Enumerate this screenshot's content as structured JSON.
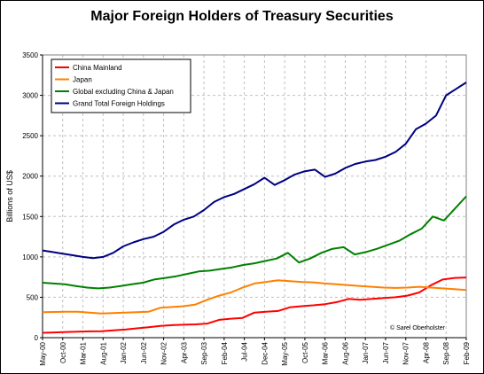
{
  "chart_data": {
    "type": "line",
    "title": "Major Foreign Holders of Treasury Securities",
    "ylabel": "Billions of US$",
    "xlabel": "",
    "ylim": [
      0,
      3500
    ],
    "yticks": [
      0,
      500,
      1000,
      1500,
      2000,
      2500,
      3000,
      3500
    ],
    "xticks": [
      "May-00",
      "Oct-00",
      "Mar-01",
      "Aug-01",
      "Jan-02",
      "Jun-02",
      "Nov-02",
      "Apr-03",
      "Sep-03",
      "Feb-04",
      "Jul-04",
      "Dec-04",
      "May-05",
      "Oct-05",
      "Mar-06",
      "Aug-06",
      "Jan-07",
      "Jun-07",
      "Nov-07",
      "Apr-08",
      "Sep-08",
      "Feb-09"
    ],
    "grid": true,
    "legend_position": "top-left",
    "credit": "© Sarel Oberholster",
    "series": [
      {
        "name": "China Mainland",
        "color": "#ff0000",
        "values": [
          60,
          65,
          70,
          75,
          78,
          80,
          90,
          100,
          115,
          130,
          145,
          155,
          160,
          165,
          175,
          220,
          235,
          245,
          310,
          320,
          330,
          375,
          390,
          400,
          415,
          440,
          480,
          470,
          480,
          490,
          500,
          520,
          560,
          650,
          720,
          740,
          745
        ]
      },
      {
        "name": "Japan",
        "color": "#ff8000",
        "values": [
          315,
          318,
          320,
          320,
          310,
          300,
          305,
          310,
          315,
          320,
          370,
          380,
          390,
          410,
          470,
          520,
          560,
          620,
          670,
          690,
          710,
          700,
          690,
          685,
          670,
          660,
          650,
          640,
          630,
          620,
          615,
          620,
          630,
          620,
          610,
          600,
          590
        ]
      },
      {
        "name": "Global excluding China & Japan",
        "color": "#008000",
        "values": [
          680,
          670,
          660,
          640,
          620,
          610,
          620,
          640,
          660,
          680,
          720,
          740,
          760,
          790,
          820,
          830,
          850,
          870,
          900,
          920,
          950,
          980,
          1050,
          930,
          980,
          1050,
          1100,
          1120,
          1030,
          1060,
          1100,
          1150,
          1200,
          1280,
          1350,
          1500,
          1450,
          1600,
          1750
        ]
      },
      {
        "name": "Grand Total Foreign Holdings",
        "color": "#000080",
        "values": [
          1080,
          1060,
          1040,
          1020,
          1000,
          985,
          1000,
          1050,
          1130,
          1180,
          1220,
          1250,
          1310,
          1400,
          1460,
          1500,
          1580,
          1680,
          1740,
          1780,
          1840,
          1900,
          1980,
          1890,
          1950,
          2020,
          2060,
          2080,
          1990,
          2030,
          2100,
          2150,
          2180,
          2200,
          2240,
          2300,
          2400,
          2580,
          2650,
          2750,
          3000,
          3080,
          3160
        ]
      }
    ]
  }
}
